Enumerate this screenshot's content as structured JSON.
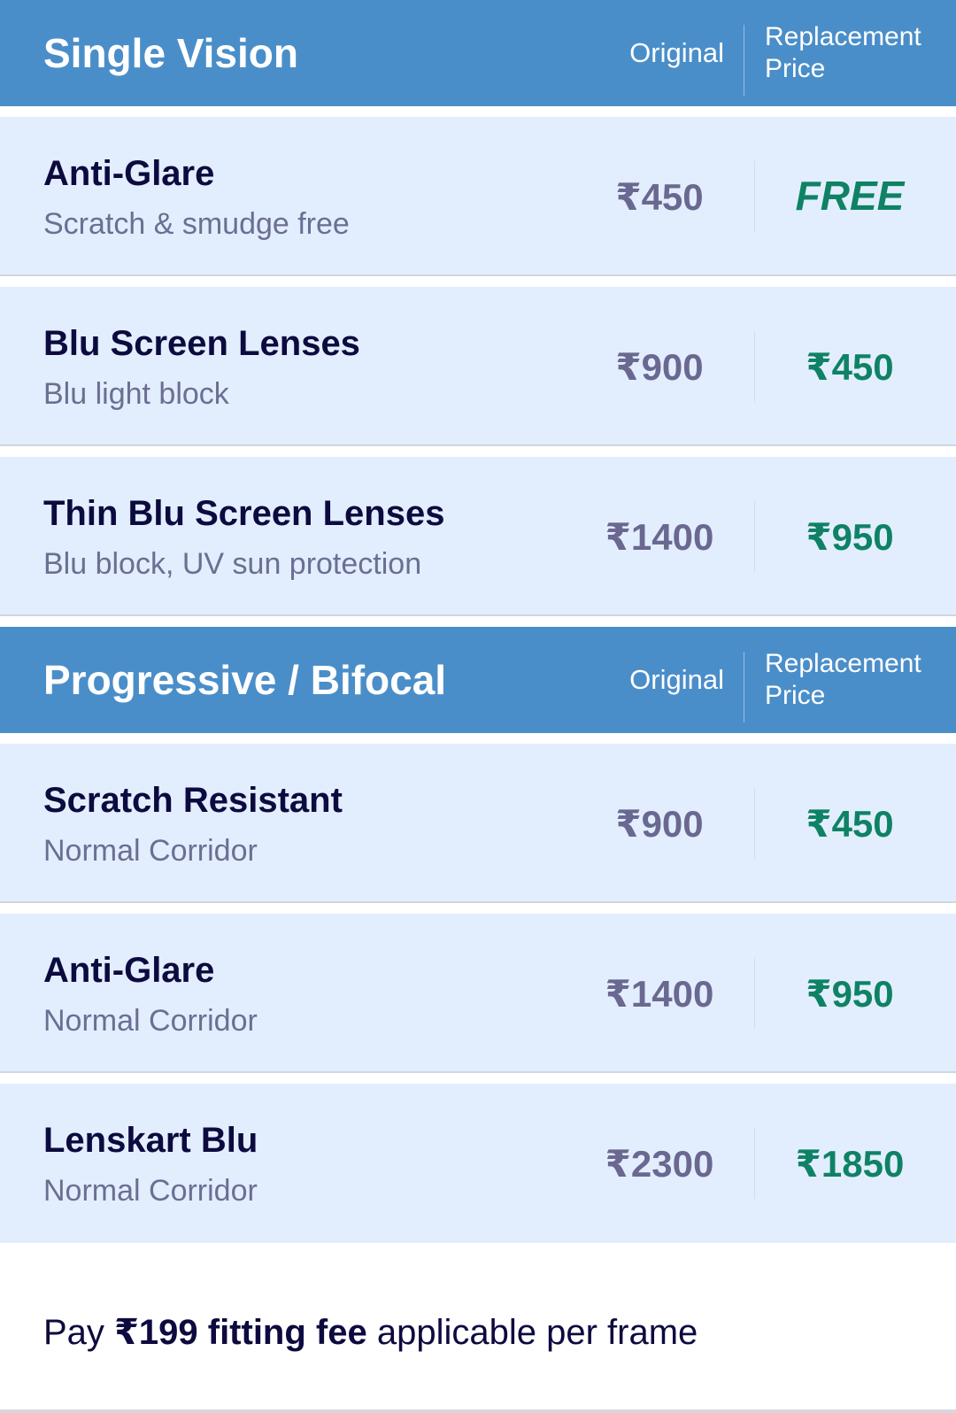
{
  "sections": [
    {
      "title": "Single Vision",
      "col_original": "Original",
      "col_replacement": "Replacement Price",
      "rows": [
        {
          "name": "Anti-Glare",
          "desc": "Scratch & smudge free",
          "original": "₹450",
          "replacement": "FREE"
        },
        {
          "name": "Blu Screen Lenses",
          "desc": "Blu light block",
          "original": "₹900",
          "replacement": "₹450"
        },
        {
          "name": "Thin Blu Screen Lenses",
          "desc": "Blu block, UV sun protection",
          "original": "₹1400",
          "replacement": "₹950"
        }
      ]
    },
    {
      "title": "Progressive / Bifocal",
      "col_original": "Original",
      "col_replacement": "Replacement Price",
      "rows": [
        {
          "name": "Scratch Resistant",
          "desc": "Normal Corridor",
          "original": "₹900",
          "replacement": "₹450"
        },
        {
          "name": "Anti-Glare",
          "desc": "Normal Corridor",
          "original": "₹1400",
          "replacement": "₹950"
        },
        {
          "name": "Lenskart Blu",
          "desc": "Normal Corridor",
          "original": "₹2300",
          "replacement": "₹1850"
        }
      ]
    }
  ],
  "footer": {
    "prefix": "Pay",
    "bold": "₹199 fitting fee",
    "suffix": "applicable per frame"
  },
  "colors": {
    "header_bg": "#4a8ec9",
    "row_bg": "#e2eefe",
    "replacement_price": "#0f8265",
    "original_price": "#6a6890"
  }
}
